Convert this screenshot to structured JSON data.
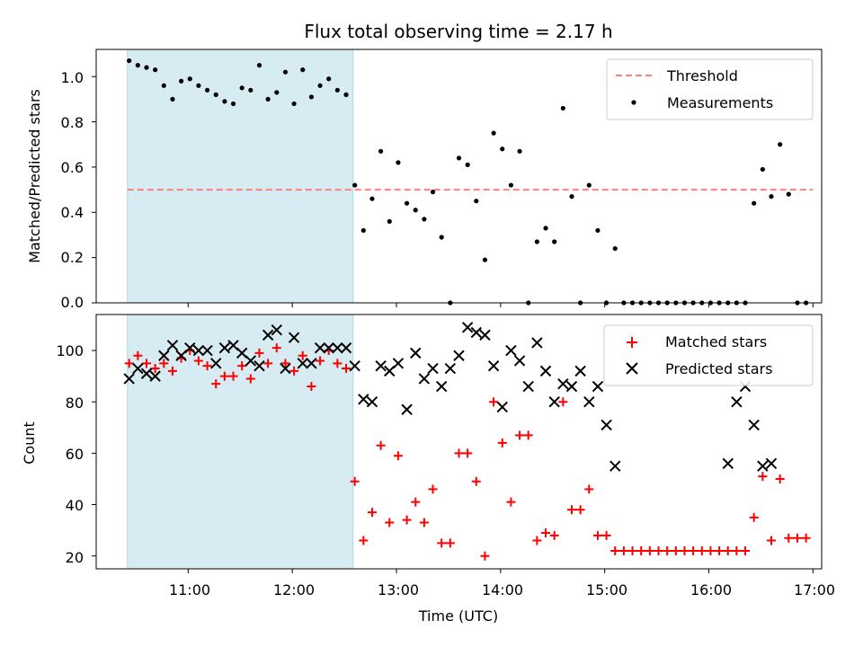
{
  "chart_data": [
    {
      "type": "scatter",
      "title": "Flux total observing time = 2.17 h",
      "xlabel": "",
      "ylabel": "Matched/Predicted stars",
      "xlim": [
        "10:07",
        "17:05"
      ],
      "ylim": [
        0,
        1.12
      ],
      "yticks": [
        "0.0",
        "0.2",
        "0.4",
        "0.6",
        "0.8",
        "1.0"
      ],
      "shaded_span": [
        "10:25",
        "12:35"
      ],
      "legend_position": "top-right",
      "legend": [
        "Threshold",
        "Measurements"
      ],
      "series": [
        {
          "name": "Threshold",
          "style": "dashed-line",
          "color": "#ff7f7f",
          "x": [
            "10:25",
            "17:00"
          ],
          "y": [
            0.5,
            0.5
          ]
        },
        {
          "name": "Measurements",
          "style": "dots",
          "color": "#000000",
          "x": [
            "10:26",
            "10:31",
            "10:36",
            "10:41",
            "10:46",
            "10:51",
            "10:56",
            "11:01",
            "11:06",
            "11:11",
            "11:16",
            "11:21",
            "11:26",
            "11:31",
            "11:36",
            "11:41",
            "11:46",
            "11:51",
            "11:56",
            "12:01",
            "12:06",
            "12:11",
            "12:16",
            "12:21",
            "12:26",
            "12:31",
            "12:36",
            "12:41",
            "12:46",
            "12:51",
            "12:56",
            "13:01",
            "13:06",
            "13:11",
            "13:16",
            "13:21",
            "13:26",
            "13:31",
            "13:36",
            "13:41",
            "13:46",
            "13:51",
            "13:56",
            "14:01",
            "14:06",
            "14:11",
            "14:16",
            "14:21",
            "14:26",
            "14:31",
            "14:36",
            "14:41",
            "14:46",
            "14:51",
            "14:56",
            "15:01",
            "15:06",
            "15:11",
            "15:16",
            "15:21",
            "15:26",
            "15:31",
            "15:36",
            "15:41",
            "15:46",
            "15:51",
            "15:56",
            "16:01",
            "16:06",
            "16:11",
            "16:16",
            "16:21",
            "16:26",
            "16:31",
            "16:36",
            "16:41",
            "16:46",
            "16:51",
            "16:56"
          ],
          "y": [
            1.07,
            1.05,
            1.04,
            1.03,
            0.96,
            0.9,
            0.98,
            0.99,
            0.96,
            0.94,
            0.92,
            0.89,
            0.88,
            0.95,
            0.94,
            1.05,
            0.9,
            0.93,
            1.02,
            0.88,
            1.03,
            0.91,
            0.96,
            0.99,
            0.94,
            0.92,
            0.52,
            0.32,
            0.46,
            0.67,
            0.36,
            0.62,
            0.44,
            0.41,
            0.37,
            0.49,
            0.29,
            0.0,
            0.64,
            0.61,
            0.45,
            0.19,
            0.75,
            0.68,
            0.52,
            0.67,
            0.0,
            0.27,
            0.33,
            0.27,
            0.86,
            0.47,
            0.0,
            0.52,
            0.32,
            0.0,
            0.24,
            0.0,
            0.0,
            0.0,
            0.0,
            0.0,
            0.0,
            0.0,
            0.0,
            0.0,
            0.0,
            0.0,
            0.0,
            0.0,
            0.0,
            0.0,
            0.44,
            0.59,
            0.47,
            0.7,
            0.48,
            0.0,
            0.0
          ]
        }
      ]
    },
    {
      "type": "scatter",
      "title": "",
      "xlabel": "Time (UTC)",
      "ylabel": "Count",
      "xlim": [
        "10:07",
        "17:05"
      ],
      "ylim": [
        15,
        114
      ],
      "yticks": [
        "20",
        "40",
        "60",
        "80",
        "100"
      ],
      "xticks": [
        "11:00",
        "12:00",
        "13:00",
        "14:00",
        "15:00",
        "16:00",
        "17:00"
      ],
      "shaded_span": [
        "10:25",
        "12:35"
      ],
      "legend_position": "top-right",
      "legend": [
        "Matched stars",
        "Predicted stars"
      ],
      "series": [
        {
          "name": "Matched stars",
          "marker": "plus",
          "color": "#ff0000",
          "x": [
            "10:26",
            "10:31",
            "10:36",
            "10:41",
            "10:46",
            "10:51",
            "10:56",
            "11:01",
            "11:06",
            "11:11",
            "11:16",
            "11:21",
            "11:26",
            "11:31",
            "11:36",
            "11:41",
            "11:46",
            "11:51",
            "11:56",
            "12:01",
            "12:06",
            "12:11",
            "12:16",
            "12:21",
            "12:26",
            "12:31",
            "12:36",
            "12:41",
            "12:46",
            "12:51",
            "12:56",
            "13:01",
            "13:06",
            "13:11",
            "13:16",
            "13:21",
            "13:26",
            "13:31",
            "13:36",
            "13:41",
            "13:46",
            "13:51",
            "13:56",
            "14:01",
            "14:06",
            "14:11",
            "14:16",
            "14:21",
            "14:26",
            "14:31",
            "14:36",
            "14:41",
            "14:46",
            "14:51",
            "14:56",
            "15:01",
            "15:06",
            "15:11",
            "15:16",
            "15:21",
            "15:26",
            "15:31",
            "15:36",
            "15:41",
            "15:46",
            "15:51",
            "15:56",
            "16:01",
            "16:06",
            "16:11",
            "16:16",
            "16:21",
            "16:26",
            "16:31",
            "16:36",
            "16:41",
            "16:46",
            "16:51",
            "16:56"
          ],
          "y": [
            95,
            98,
            95,
            93,
            95,
            92,
            97,
            100,
            96,
            94,
            87,
            90,
            90,
            94,
            89,
            99,
            95,
            101,
            95,
            92,
            98,
            86,
            96,
            100,
            95,
            93,
            49,
            26,
            37,
            63,
            33,
            59,
            34,
            41,
            33,
            46,
            25,
            25,
            60,
            60,
            49,
            20,
            80,
            64,
            41,
            67,
            67,
            26,
            29,
            28,
            80,
            38,
            38,
            46,
            28,
            28,
            22,
            22,
            22,
            22,
            22,
            22,
            22,
            22,
            22,
            22,
            22,
            22,
            22,
            22,
            22,
            22,
            35,
            51,
            26,
            50,
            27,
            27,
            27
          ]
        },
        {
          "name": "Predicted stars",
          "marker": "x",
          "color": "#000000",
          "x": [
            "10:26",
            "10:31",
            "10:36",
            "10:41",
            "10:46",
            "10:51",
            "10:56",
            "11:01",
            "11:06",
            "11:11",
            "11:16",
            "11:21",
            "11:26",
            "11:31",
            "11:36",
            "11:41",
            "11:46",
            "11:51",
            "11:56",
            "12:01",
            "12:06",
            "12:11",
            "12:16",
            "12:21",
            "12:26",
            "12:31",
            "12:36",
            "12:41",
            "12:46",
            "12:51",
            "12:56",
            "13:01",
            "13:06",
            "13:11",
            "13:16",
            "13:21",
            "13:26",
            "13:31",
            "13:36",
            "13:41",
            "13:46",
            "13:51",
            "13:56",
            "14:01",
            "14:06",
            "14:11",
            "14:16",
            "14:21",
            "14:26",
            "14:31",
            "14:36",
            "14:41",
            "14:46",
            "14:51",
            "14:56",
            "15:01",
            "15:06",
            "16:11",
            "16:16",
            "16:21",
            "16:26",
            "16:31",
            "16:36"
          ],
          "y": [
            89,
            93,
            91,
            90,
            98,
            102,
            98,
            101,
            100,
            100,
            95,
            101,
            102,
            99,
            96,
            94,
            106,
            108,
            93,
            105,
            95,
            95,
            101,
            101,
            101,
            101,
            94,
            81,
            80,
            94,
            92,
            95,
            77,
            99,
            89,
            93,
            86,
            93,
            98,
            109,
            107,
            106,
            94,
            78,
            100,
            96,
            86,
            103,
            92,
            80,
            87,
            86,
            92,
            80,
            86,
            71,
            55,
            56,
            80,
            86,
            71,
            55,
            56
          ]
        }
      ]
    }
  ]
}
